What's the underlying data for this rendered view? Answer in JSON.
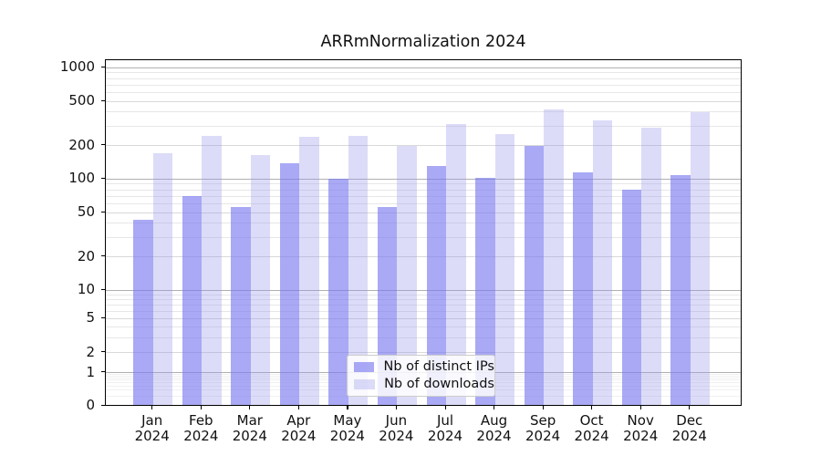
{
  "chart_data": {
    "type": "bar",
    "title": "ARRmNormalization 2024",
    "categories": [
      "Jan",
      "Feb",
      "Mar",
      "Apr",
      "May",
      "Jun",
      "Jul",
      "Aug",
      "Sep",
      "Oct",
      "Nov",
      "Dec"
    ],
    "category_year": "2024",
    "series": [
      {
        "name": "Nb of distinct IPs",
        "color": "rgba(120,120,240,0.64)",
        "values": [
          43,
          70,
          56,
          140,
          100,
          56,
          130,
          102,
          200,
          114,
          80,
          108
        ]
      },
      {
        "name": "Nb of downloads",
        "color": "rgba(150,150,235,0.33)",
        "values": [
          170,
          246,
          163,
          238,
          246,
          200,
          310,
          256,
          420,
          340,
          290,
          400
        ]
      }
    ],
    "y_axis": {
      "scale": "symlog",
      "tick_labels": [
        "0",
        "1",
        "2",
        "5",
        "10",
        "20",
        "50",
        "100",
        "200",
        "500",
        "1000"
      ],
      "ticks": [
        0,
        1,
        2,
        5,
        10,
        20,
        50,
        100,
        200,
        500,
        1000
      ],
      "ylim_top": 1170
    },
    "x_axis": {
      "label_lines": 2
    },
    "legend": {
      "position": "lower-center"
    },
    "grid": "horizontal-log-minor"
  }
}
